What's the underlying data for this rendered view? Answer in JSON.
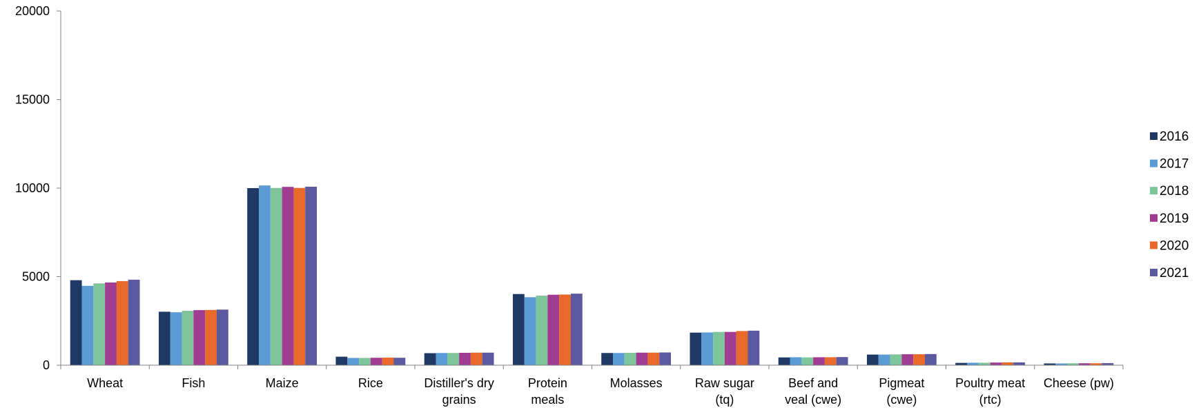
{
  "chart_data": {
    "type": "bar",
    "categories": [
      [
        "Wheat"
      ],
      [
        "Fish"
      ],
      [
        "Maize"
      ],
      [
        "Rice"
      ],
      [
        "Distiller's dry",
        "grains"
      ],
      [
        "Protein",
        "meals"
      ],
      [
        "Molasses"
      ],
      [
        "Raw sugar",
        "(tq)"
      ],
      [
        "Beef and",
        "veal (cwe)"
      ],
      [
        "Pigmeat",
        "(cwe)"
      ],
      [
        "Poultry meat",
        "(rtc)"
      ],
      [
        "Cheese (pw)"
      ]
    ],
    "series": [
      {
        "name": "2016",
        "color": "#1f3864",
        "values": [
          4800,
          3020,
          10000,
          480,
          680,
          4020,
          690,
          1840,
          440,
          600,
          130,
          100
        ]
      },
      {
        "name": "2017",
        "color": "#5b9bd5",
        "values": [
          4480,
          2990,
          10150,
          410,
          690,
          3840,
          690,
          1850,
          450,
          600,
          140,
          100
        ]
      },
      {
        "name": "2018",
        "color": "#7fc59a",
        "values": [
          4620,
          3070,
          10010,
          410,
          690,
          3930,
          700,
          1880,
          440,
          610,
          140,
          110
        ]
      },
      {
        "name": "2019",
        "color": "#a23b92",
        "values": [
          4670,
          3110,
          10070,
          420,
          700,
          3980,
          710,
          1880,
          450,
          620,
          150,
          110
        ]
      },
      {
        "name": "2020",
        "color": "#e8692a",
        "values": [
          4750,
          3120,
          10010,
          430,
          710,
          3990,
          710,
          1930,
          450,
          620,
          160,
          110
        ]
      },
      {
        "name": "2021",
        "color": "#5b5aa0",
        "values": [
          4830,
          3140,
          10080,
          420,
          710,
          4040,
          720,
          1950,
          460,
          630,
          160,
          120
        ]
      }
    ],
    "ylim": [
      0,
      20000
    ],
    "yticks": [
      0,
      5000,
      10000,
      15000,
      20000
    ],
    "grid": false,
    "legend_position": "right"
  }
}
